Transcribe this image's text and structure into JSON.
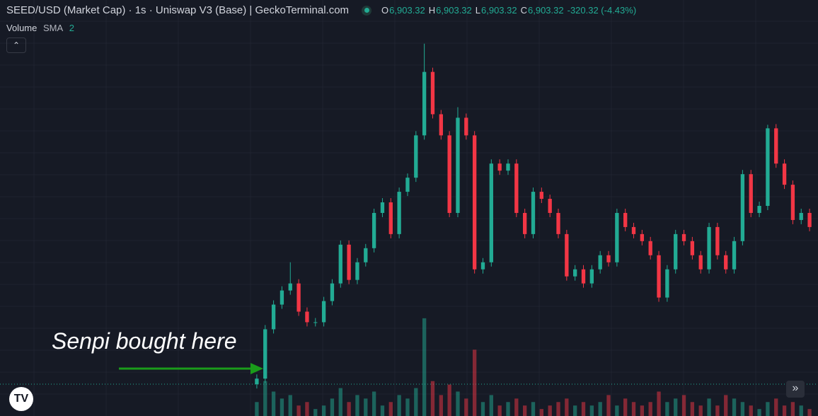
{
  "chart_data": {
    "type": "candlestick",
    "title": "SEED/USD (Market Cap) · 1s · Uniswap V3 (Base) | GeckoTerminal.com",
    "readout": {
      "o": "O",
      "open": "6,903.32",
      "h": "H",
      "high": "6,903.32",
      "l": "L",
      "low": "6,903.32",
      "c": "C",
      "close": "6,903.32",
      "change": "-320.32 (-4.43%)"
    },
    "volume_label": "Volume",
    "sma_label": "SMA",
    "sma_length": "2",
    "annotation": "Senpi bought here",
    "up_color": "#22ab94",
    "down_color": "#f23645",
    "grid": true,
    "ylim": [
      0,
      590
    ],
    "volume_ylim": [
      0,
      150
    ],
    "open": [
      45,
      53,
      123,
      158,
      178,
      188,
      148,
      133,
      133,
      163,
      188,
      243,
      193,
      218,
      238,
      288,
      303,
      258,
      318,
      338,
      398,
      488,
      428,
      398,
      288,
      423,
      398,
      208,
      218,
      358,
      348,
      358,
      288,
      258,
      318,
      308,
      288,
      258,
      198,
      208,
      188,
      208,
      228,
      218,
      288,
      268,
      258,
      248,
      228,
      168,
      208,
      258,
      248,
      228,
      208,
      268,
      228,
      208,
      248,
      343,
      288,
      298,
      408,
      358,
      328,
      278,
      288
    ],
    "high": [
      59,
      129,
      164,
      184,
      218,
      194,
      154,
      139,
      169,
      194,
      249,
      249,
      224,
      244,
      294,
      309,
      309,
      324,
      344,
      404,
      528,
      494,
      434,
      404,
      438,
      429,
      404,
      224,
      364,
      364,
      364,
      364,
      294,
      324,
      324,
      314,
      294,
      264,
      214,
      214,
      214,
      234,
      234,
      294,
      294,
      274,
      264,
      254,
      234,
      214,
      264,
      264,
      254,
      234,
      274,
      274,
      234,
      254,
      349,
      349,
      304,
      413,
      414,
      364,
      334,
      294,
      294
    ],
    "low": [
      39,
      47,
      117,
      152,
      172,
      142,
      127,
      127,
      127,
      157,
      182,
      187,
      187,
      212,
      232,
      282,
      252,
      252,
      312,
      332,
      392,
      422,
      392,
      282,
      282,
      392,
      202,
      202,
      212,
      342,
      342,
      282,
      252,
      252,
      302,
      282,
      252,
      192,
      192,
      182,
      182,
      202,
      212,
      212,
      262,
      252,
      242,
      222,
      162,
      162,
      202,
      242,
      222,
      202,
      202,
      222,
      202,
      202,
      242,
      282,
      282,
      292,
      352,
      322,
      272,
      272,
      262
    ],
    "close": [
      53,
      123,
      158,
      178,
      188,
      148,
      133,
      133,
      163,
      188,
      243,
      193,
      218,
      238,
      288,
      303,
      258,
      318,
      338,
      398,
      488,
      428,
      398,
      288,
      423,
      398,
      208,
      218,
      358,
      348,
      358,
      288,
      258,
      318,
      308,
      288,
      258,
      198,
      208,
      188,
      208,
      228,
      218,
      288,
      268,
      258,
      248,
      228,
      168,
      208,
      258,
      248,
      228,
      208,
      268,
      228,
      208,
      248,
      343,
      288,
      298,
      408,
      358,
      328,
      278,
      288,
      268
    ],
    "volume": [
      20,
      50,
      35,
      25,
      30,
      15,
      20,
      10,
      15,
      25,
      40,
      20,
      30,
      25,
      35,
      15,
      20,
      30,
      25,
      40,
      140,
      50,
      30,
      45,
      35,
      25,
      95,
      20,
      30,
      15,
      20,
      25,
      15,
      20,
      10,
      15,
      20,
      25,
      15,
      20,
      15,
      20,
      30,
      15,
      25,
      20,
      15,
      20,
      35,
      20,
      25,
      30,
      20,
      15,
      25,
      15,
      30,
      25,
      20,
      15,
      10,
      20,
      25,
      15,
      20,
      15,
      10
    ]
  }
}
